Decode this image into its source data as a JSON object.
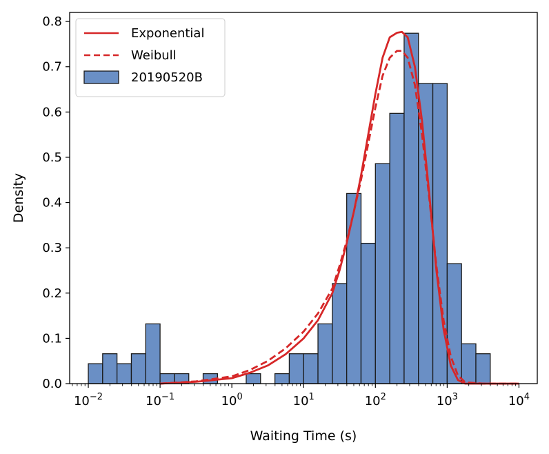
{
  "chart_data": {
    "type": "histogram",
    "title": "",
    "xlabel": "Waiting Time (s)",
    "ylabel": "Density",
    "xscale": "log",
    "xlim": [
      0.0055,
      18000
    ],
    "ylim": [
      0,
      0.82
    ],
    "legend_position": "top-left",
    "x_ticks": [
      {
        "mantissa": "10",
        "exponent": "−2",
        "value": 0.01
      },
      {
        "mantissa": "10",
        "exponent": "−1",
        "value": 0.1
      },
      {
        "mantissa": "10",
        "exponent": "0",
        "value": 1
      },
      {
        "mantissa": "10",
        "exponent": "1",
        "value": 10
      },
      {
        "mantissa": "10",
        "exponent": "2",
        "value": 100
      },
      {
        "mantissa": "10",
        "exponent": "3",
        "value": 1000
      },
      {
        "mantissa": "10",
        "exponent": "4",
        "value": 10000
      }
    ],
    "y_ticks": [
      {
        "label": "0.0",
        "value": 0.0
      },
      {
        "label": "0.1",
        "value": 0.1
      },
      {
        "label": "0.2",
        "value": 0.2
      },
      {
        "label": "0.3",
        "value": 0.3
      },
      {
        "label": "0.4",
        "value": 0.4
      },
      {
        "label": "0.5",
        "value": 0.5
      },
      {
        "label": "0.6",
        "value": 0.6
      },
      {
        "label": "0.7",
        "value": 0.7
      },
      {
        "label": "0.8",
        "value": 0.8
      }
    ],
    "histogram": {
      "name": "20190520B",
      "color": "#6a8fc5",
      "edge_color": "#1a1a1a",
      "log10_bin_start": -2.0,
      "log10_bin_width": 0.2,
      "densities": [
        0.044,
        0.066,
        0.044,
        0.066,
        0.132,
        0.022,
        0.022,
        0.0,
        0.022,
        0.0,
        0.0,
        0.022,
        0.0,
        0.022,
        0.066,
        0.066,
        0.132,
        0.221,
        0.42,
        0.31,
        0.486,
        0.597,
        0.774,
        0.663,
        0.663,
        0.265,
        0.088,
        0.066
      ]
    },
    "series": [
      {
        "name": "Exponential",
        "style": "solid",
        "color": "#d62728",
        "log10_x": [
          -1.0,
          -0.5,
          0.0,
          0.25,
          0.5,
          0.75,
          1.0,
          1.2,
          1.4,
          1.5,
          1.6,
          1.7,
          1.8,
          1.9,
          2.0,
          2.1,
          2.2,
          2.3,
          2.37,
          2.45,
          2.55,
          2.65,
          2.75,
          2.85,
          2.95,
          3.05,
          3.15,
          3.25,
          3.5,
          4.0
        ],
        "y": [
          0.0,
          0.004,
          0.012,
          0.024,
          0.04,
          0.065,
          0.1,
          0.14,
          0.2,
          0.25,
          0.31,
          0.38,
          0.46,
          0.55,
          0.64,
          0.72,
          0.765,
          0.775,
          0.777,
          0.765,
          0.7,
          0.58,
          0.42,
          0.25,
          0.12,
          0.04,
          0.008,
          0.0,
          0.0,
          0.0
        ]
      },
      {
        "name": "Weibull",
        "style": "dashed",
        "color": "#d62728",
        "log10_x": [
          -1.0,
          -0.5,
          0.0,
          0.25,
          0.5,
          0.75,
          1.0,
          1.2,
          1.4,
          1.5,
          1.6,
          1.7,
          1.8,
          1.9,
          2.0,
          2.1,
          2.2,
          2.3,
          2.37,
          2.45,
          2.55,
          2.65,
          2.75,
          2.85,
          2.95,
          3.05,
          3.15,
          3.25,
          3.5,
          4.0
        ],
        "y": [
          0.0,
          0.005,
          0.016,
          0.03,
          0.05,
          0.078,
          0.115,
          0.155,
          0.21,
          0.26,
          0.315,
          0.38,
          0.45,
          0.53,
          0.61,
          0.68,
          0.72,
          0.735,
          0.735,
          0.72,
          0.66,
          0.55,
          0.41,
          0.26,
          0.14,
          0.06,
          0.018,
          0.003,
          0.0,
          0.0
        ]
      }
    ],
    "legend": [
      {
        "label": "Exponential",
        "kind": "solid-line"
      },
      {
        "label": "Weibull",
        "kind": "dashed-line"
      },
      {
        "label": "20190520B",
        "kind": "patch"
      }
    ]
  }
}
